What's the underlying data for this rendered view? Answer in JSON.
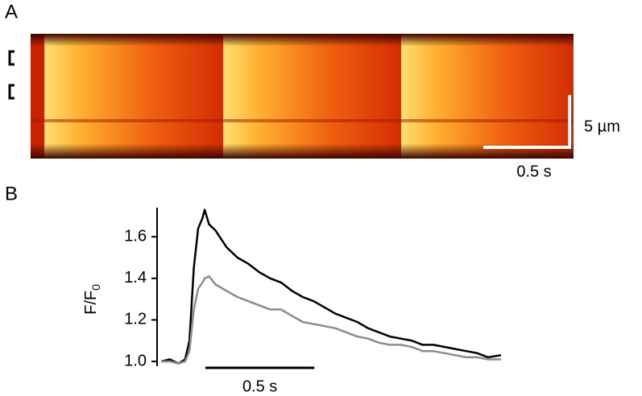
{
  "panel_a": {
    "label": "A",
    "scale_y_label": "5 µm",
    "scale_x_label": "0.5 s"
  },
  "chart_data": {
    "type": "line",
    "panel_label": "B",
    "ylabel": {
      "text": "F/F",
      "subscript": "0"
    },
    "x": [
      0,
      0.04,
      0.08,
      0.11,
      0.13,
      0.15,
      0.17,
      0.19,
      0.2,
      0.22,
      0.25,
      0.3,
      0.35,
      0.4,
      0.45,
      0.5,
      0.55,
      0.6,
      0.65,
      0.7,
      0.75,
      0.8,
      0.85,
      0.9,
      0.95,
      1.0,
      1.05,
      1.1,
      1.15,
      1.2,
      1.25,
      1.3,
      1.35,
      1.4,
      1.45,
      1.5,
      1.56
    ],
    "series": [
      {
        "color": "#000000",
        "values": [
          1.0,
          1.01,
          0.99,
          1.01,
          1.1,
          1.45,
          1.64,
          1.69,
          1.73,
          1.66,
          1.63,
          1.55,
          1.5,
          1.47,
          1.43,
          1.4,
          1.38,
          1.34,
          1.31,
          1.29,
          1.26,
          1.23,
          1.21,
          1.19,
          1.16,
          1.14,
          1.12,
          1.11,
          1.1,
          1.08,
          1.08,
          1.07,
          1.06,
          1.05,
          1.04,
          1.02,
          1.03
        ]
      },
      {
        "color": "#8c8c8c",
        "values": [
          1.0,
          1.0,
          0.99,
          1.0,
          1.05,
          1.25,
          1.35,
          1.38,
          1.4,
          1.41,
          1.37,
          1.34,
          1.31,
          1.29,
          1.27,
          1.25,
          1.25,
          1.22,
          1.19,
          1.18,
          1.17,
          1.16,
          1.14,
          1.12,
          1.11,
          1.09,
          1.08,
          1.08,
          1.07,
          1.05,
          1.05,
          1.04,
          1.03,
          1.02,
          1.02,
          1.01,
          1.01
        ]
      }
    ],
    "xlim": [
      0,
      1.56
    ],
    "ylim": [
      0.977,
      1.74
    ],
    "yticks": [
      {
        "value": 1.0,
        "label": "1.0"
      },
      {
        "value": 1.2,
        "label": "1.2"
      },
      {
        "value": 1.4,
        "label": "1.4"
      },
      {
        "value": 1.6,
        "label": "1.6"
      }
    ],
    "x_scalebar": {
      "value": 0.5,
      "label": "0.5 s"
    }
  }
}
